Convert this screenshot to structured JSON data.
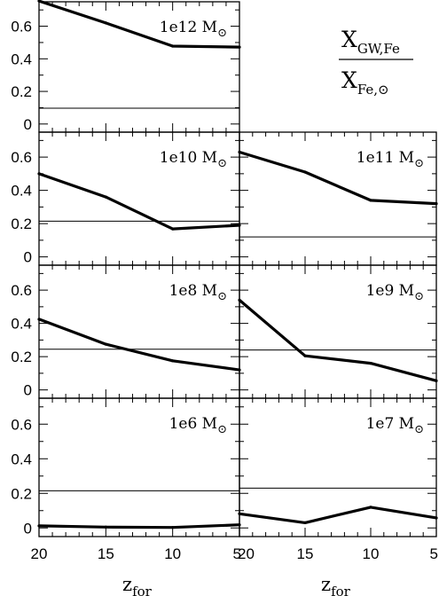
{
  "chart_data": {
    "type": "line",
    "layout": "grid of 7 panels (4 rows x 2 columns, top-right cell holds the ratio label)",
    "ratio_label": {
      "numerator": "X",
      "numerator_sub": "GW,Fe",
      "denominator": "X",
      "denominator_sub": "Fe,⊙"
    },
    "x_axis": {
      "title": "z",
      "title_sub": "for",
      "xlim": [
        20,
        5
      ],
      "inverted": true,
      "ticks": [
        20,
        15,
        10,
        5
      ],
      "tick_labels": [
        "20",
        "15",
        "10",
        "5"
      ]
    },
    "y_axis": {
      "ylim": [
        -0.05,
        0.75
      ],
      "ticks": [
        0,
        0.2,
        0.4,
        0.6
      ],
      "tick_labels": [
        "0",
        "0.2",
        "0.4",
        "0.6"
      ]
    },
    "panels": [
      {
        "mass": "1e12 M",
        "mass_sub": "⊙",
        "x": [
          20,
          15,
          10,
          5
        ],
        "values": [
          0.755,
          0.62,
          0.478,
          0.472
        ],
        "reference": 0.097
      },
      {
        "mass": "1e10 M",
        "mass_sub": "⊙",
        "x": [
          20,
          15,
          10,
          5
        ],
        "values": [
          0.5,
          0.36,
          0.168,
          0.19
        ],
        "reference": 0.215
      },
      {
        "mass": "1e11 M",
        "mass_sub": "⊙",
        "x": [
          20,
          15,
          10,
          5
        ],
        "values": [
          0.63,
          0.51,
          0.34,
          0.32
        ],
        "reference": 0.12
      },
      {
        "mass": "1e8 M",
        "mass_sub": "⊙",
        "x": [
          20,
          15,
          10,
          5
        ],
        "values": [
          0.425,
          0.275,
          0.175,
          0.12
        ],
        "reference": 0.245
      },
      {
        "mass": "1e9 M",
        "mass_sub": "⊙",
        "x": [
          20,
          15,
          10,
          5
        ],
        "values": [
          0.54,
          0.205,
          0.16,
          0.055
        ],
        "reference": 0.24
      },
      {
        "mass": "1e6 M",
        "mass_sub": "⊙",
        "x": [
          20,
          15,
          10,
          5
        ],
        "values": [
          0.012,
          0.005,
          0.003,
          0.018
        ],
        "reference": 0.215
      },
      {
        "mass": "1e7 M",
        "mass_sub": "⊙",
        "x": [
          20,
          15,
          10,
          5
        ],
        "values": [
          0.082,
          0.03,
          0.12,
          0.058
        ],
        "reference": 0.23
      }
    ]
  }
}
